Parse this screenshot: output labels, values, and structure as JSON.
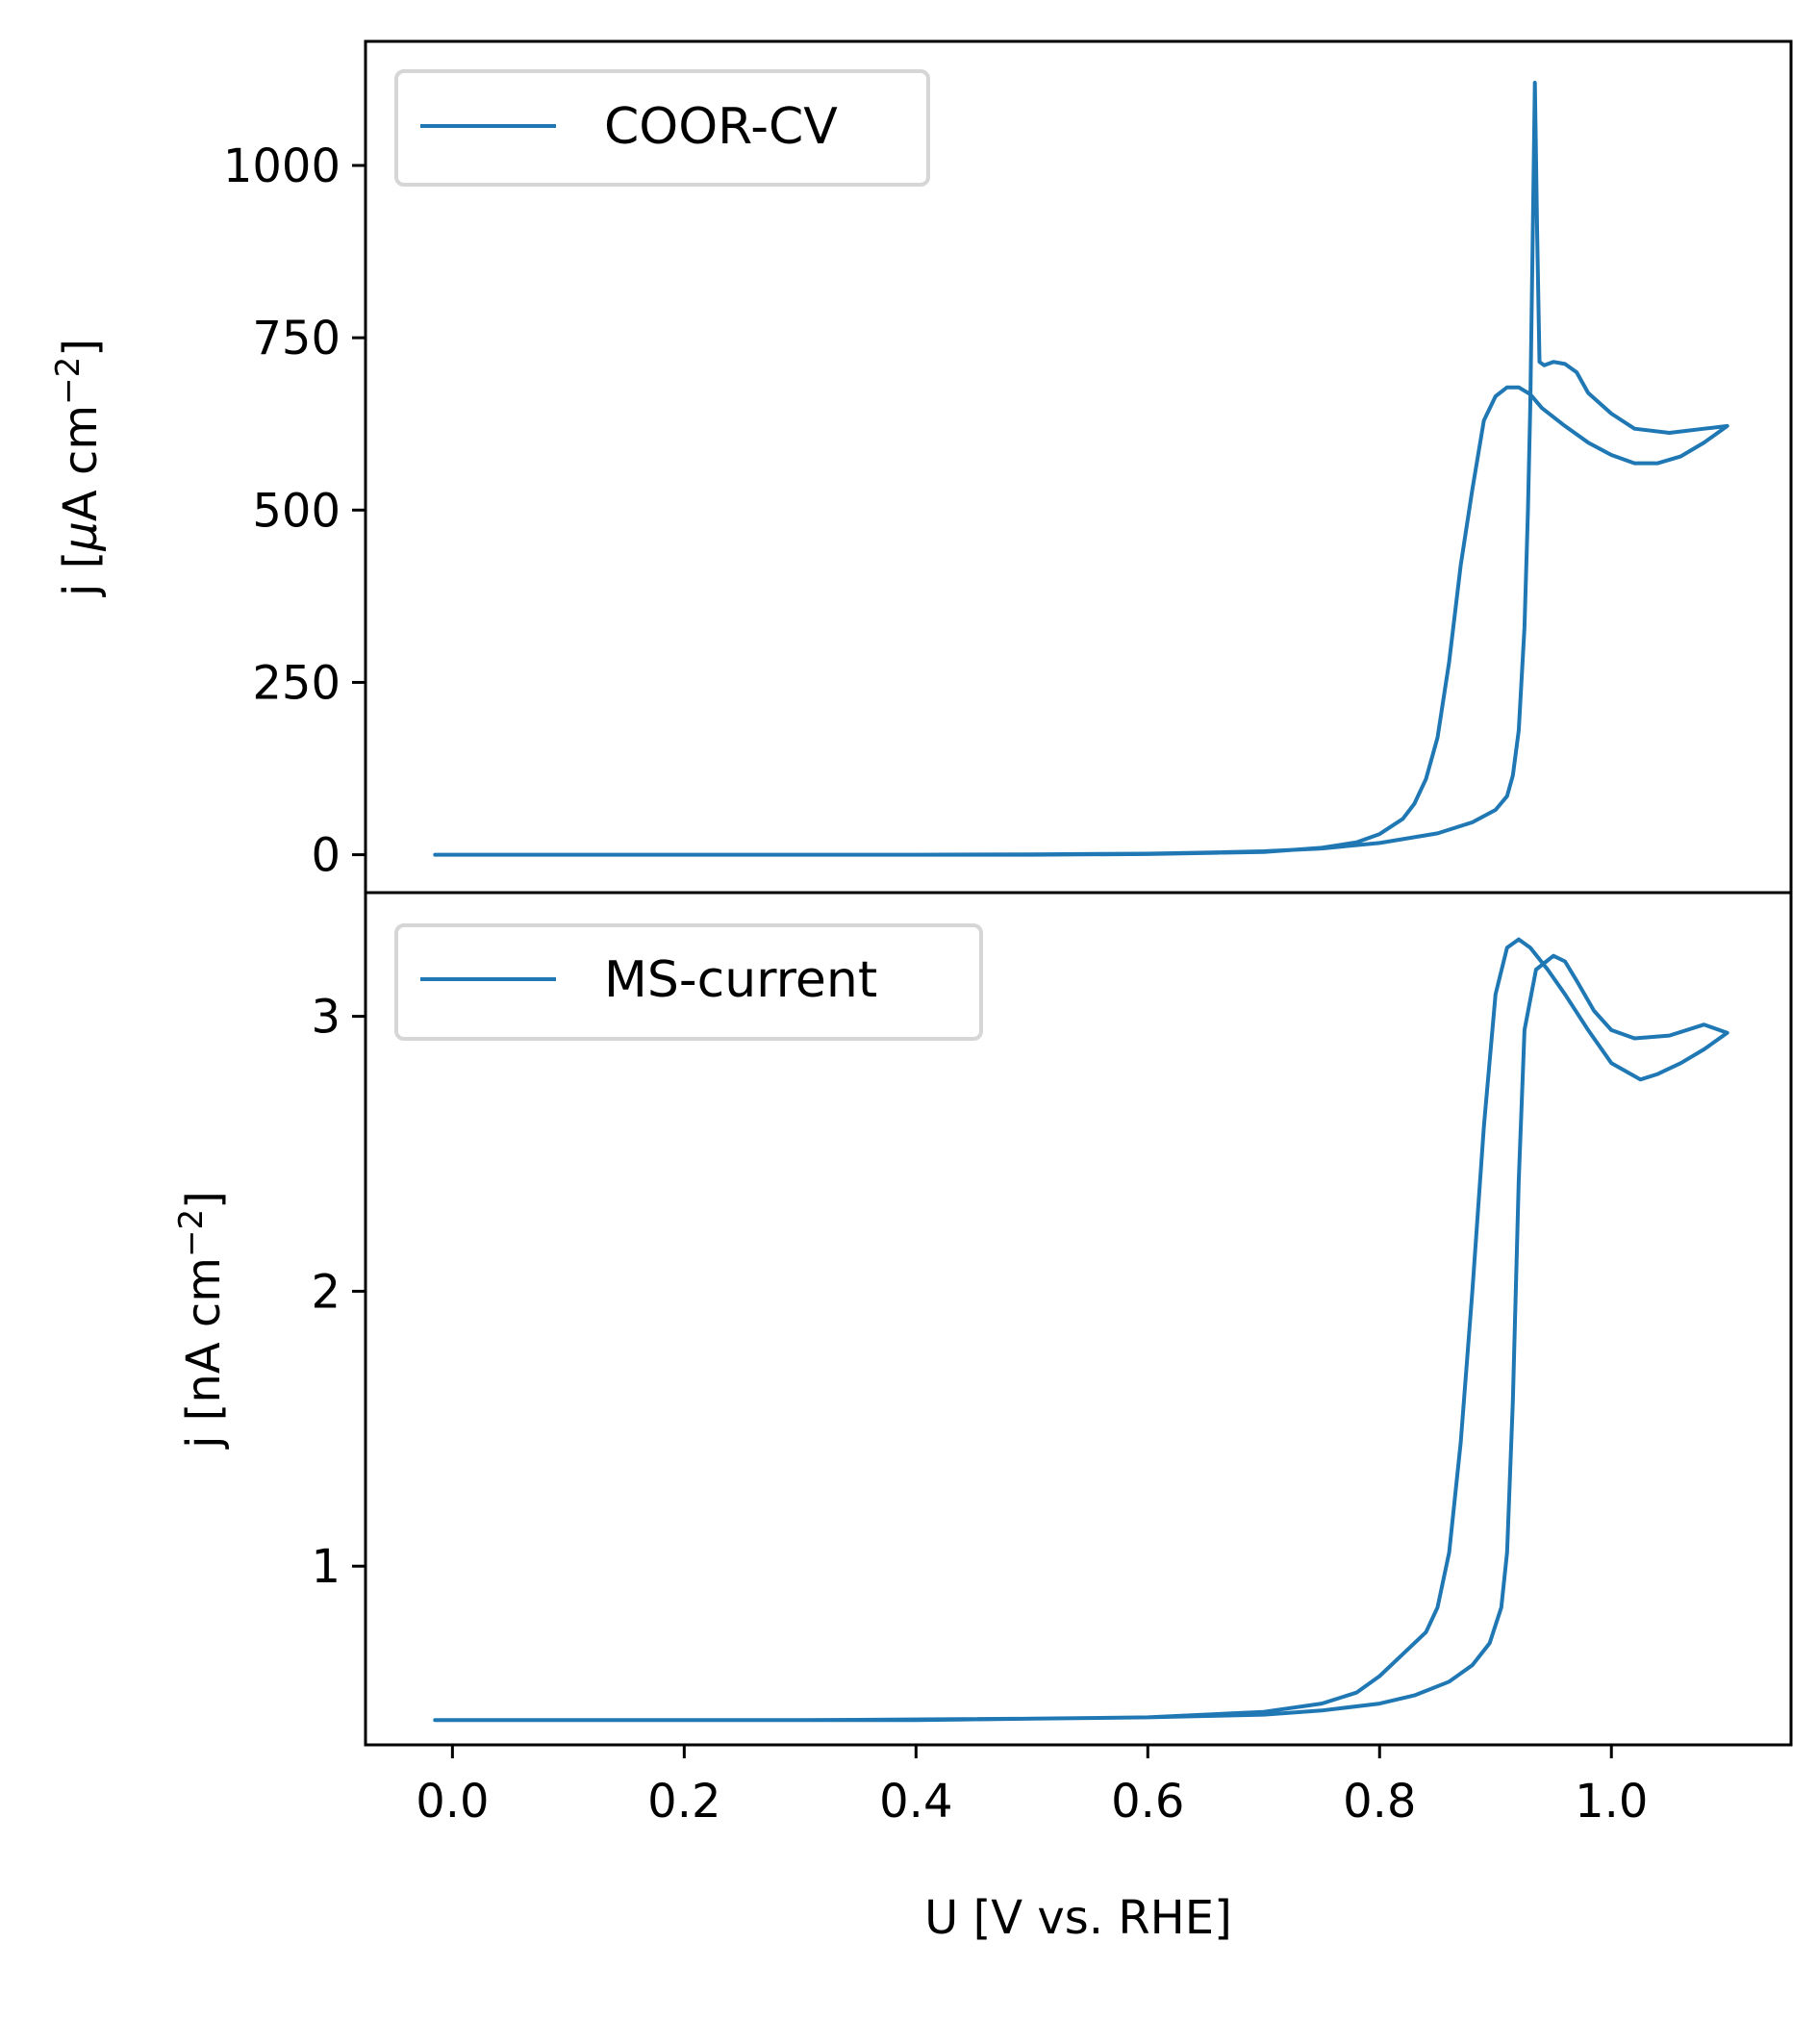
{
  "chart_data": [
    {
      "type": "line",
      "xlabel": "U [V vs. RHE]",
      "ylabel_main": "j [",
      "ylabel_mu": "μ",
      "ylabel_rest": "A cm",
      "ylabel_sup": "−2",
      "ylabel_end": "]",
      "xlim": [
        -0.075,
        1.155
      ],
      "ylim": [
        -55,
        1180
      ],
      "xticks_shown": false,
      "yticks": [
        {
          "value": 0,
          "label": "0"
        },
        {
          "value": 250,
          "label": "250"
        },
        {
          "value": 500,
          "label": "500"
        },
        {
          "value": 750,
          "label": "750"
        },
        {
          "value": 1000,
          "label": "1000"
        }
      ],
      "legend_position": "upper-left",
      "series": [
        {
          "name": "COOR-CV",
          "color": "#1f77b4",
          "points": [
            [
              -0.015,
              0
            ],
            [
              0.1,
              0
            ],
            [
              0.2,
              0
            ],
            [
              0.3,
              0
            ],
            [
              0.4,
              0
            ],
            [
              0.5,
              0.5
            ],
            [
              0.6,
              1.5
            ],
            [
              0.65,
              3
            ],
            [
              0.7,
              5
            ],
            [
              0.75,
              9
            ],
            [
              0.8,
              17
            ],
            [
              0.85,
              31
            ],
            [
              0.88,
              47
            ],
            [
              0.9,
              65
            ],
            [
              0.91,
              85
            ],
            [
              0.915,
              115
            ],
            [
              0.92,
              180
            ],
            [
              0.925,
              330
            ],
            [
              0.928,
              500
            ],
            [
              0.93,
              650
            ],
            [
              0.932,
              880
            ],
            [
              0.934,
              1120
            ],
            [
              0.936,
              900
            ],
            [
              0.938,
              715
            ],
            [
              0.942,
              710
            ],
            [
              0.95,
              715
            ],
            [
              0.96,
              712
            ],
            [
              0.97,
              700
            ],
            [
              0.98,
              670
            ],
            [
              1.0,
              640
            ],
            [
              1.02,
              618
            ],
            [
              1.05,
              612
            ],
            [
              1.08,
              618
            ],
            [
              1.1,
              622
            ],
            [
              1.08,
              598
            ],
            [
              1.06,
              578
            ],
            [
              1.04,
              568
            ],
            [
              1.02,
              568
            ],
            [
              1.0,
              580
            ],
            [
              0.98,
              598
            ],
            [
              0.96,
              622
            ],
            [
              0.94,
              648
            ],
            [
              0.93,
              668
            ],
            [
              0.92,
              678
            ],
            [
              0.91,
              678
            ],
            [
              0.9,
              665
            ],
            [
              0.89,
              630
            ],
            [
              0.88,
              530
            ],
            [
              0.87,
              420
            ],
            [
              0.86,
              280
            ],
            [
              0.85,
              170
            ],
            [
              0.84,
              110
            ],
            [
              0.83,
              74
            ],
            [
              0.82,
              52
            ],
            [
              0.8,
              30
            ],
            [
              0.78,
              18
            ],
            [
              0.75,
              10
            ],
            [
              0.7,
              4
            ],
            [
              0.6,
              1
            ],
            [
              0.5,
              0
            ],
            [
              0.3,
              0
            ],
            [
              0.1,
              0
            ],
            [
              -0.015,
              0
            ]
          ]
        }
      ]
    },
    {
      "type": "line",
      "xlabel": "U [V vs. RHE]",
      "ylabel_main": "j [nA cm",
      "ylabel_sup": "−2",
      "ylabel_end": "]",
      "xlim": [
        -0.075,
        1.155
      ],
      "ylim": [
        0.35,
        3.45
      ],
      "xticks": [
        {
          "value": 0.0,
          "label": "0.0"
        },
        {
          "value": 0.2,
          "label": "0.2"
        },
        {
          "value": 0.4,
          "label": "0.4"
        },
        {
          "value": 0.6,
          "label": "0.6"
        },
        {
          "value": 0.8,
          "label": "0.8"
        },
        {
          "value": 1.0,
          "label": "1.0"
        }
      ],
      "yticks": [
        {
          "value": 1,
          "label": "1"
        },
        {
          "value": 2,
          "label": "2"
        },
        {
          "value": 3,
          "label": "3"
        }
      ],
      "legend_position": "upper-left",
      "series": [
        {
          "name": "MS-current",
          "color": "#1f77b4",
          "points": [
            [
              -0.015,
              0.44
            ],
            [
              0.1,
              0.44
            ],
            [
              0.2,
              0.44
            ],
            [
              0.3,
              0.44
            ],
            [
              0.4,
              0.44
            ],
            [
              0.5,
              0.445
            ],
            [
              0.6,
              0.45
            ],
            [
              0.65,
              0.455
            ],
            [
              0.7,
              0.46
            ],
            [
              0.75,
              0.475
            ],
            [
              0.8,
              0.5
            ],
            [
              0.83,
              0.53
            ],
            [
              0.86,
              0.58
            ],
            [
              0.88,
              0.64
            ],
            [
              0.895,
              0.72
            ],
            [
              0.905,
              0.85
            ],
            [
              0.91,
              1.05
            ],
            [
              0.915,
              1.6
            ],
            [
              0.92,
              2.4
            ],
            [
              0.925,
              2.95
            ],
            [
              0.935,
              3.17
            ],
            [
              0.95,
              3.22
            ],
            [
              0.96,
              3.2
            ],
            [
              0.97,
              3.13
            ],
            [
              0.985,
              3.02
            ],
            [
              1.0,
              2.95
            ],
            [
              1.02,
              2.92
            ],
            [
              1.05,
              2.93
            ],
            [
              1.08,
              2.97
            ],
            [
              1.1,
              2.94
            ],
            [
              1.08,
              2.88
            ],
            [
              1.06,
              2.83
            ],
            [
              1.04,
              2.79
            ],
            [
              1.025,
              2.77
            ],
            [
              1.0,
              2.83
            ],
            [
              0.98,
              2.95
            ],
            [
              0.96,
              3.08
            ],
            [
              0.945,
              3.17
            ],
            [
              0.93,
              3.25
            ],
            [
              0.92,
              3.28
            ],
            [
              0.91,
              3.25
            ],
            [
              0.9,
              3.08
            ],
            [
              0.89,
              2.6
            ],
            [
              0.88,
              2.0
            ],
            [
              0.87,
              1.45
            ],
            [
              0.86,
              1.05
            ],
            [
              0.85,
              0.85
            ],
            [
              0.84,
              0.76
            ],
            [
              0.82,
              0.68
            ],
            [
              0.8,
              0.6
            ],
            [
              0.78,
              0.54
            ],
            [
              0.75,
              0.5
            ],
            [
              0.7,
              0.47
            ],
            [
              0.6,
              0.45
            ],
            [
              0.5,
              0.445
            ],
            [
              0.3,
              0.44
            ],
            [
              0.1,
              0.44
            ],
            [
              -0.015,
              0.44
            ]
          ]
        }
      ]
    }
  ]
}
